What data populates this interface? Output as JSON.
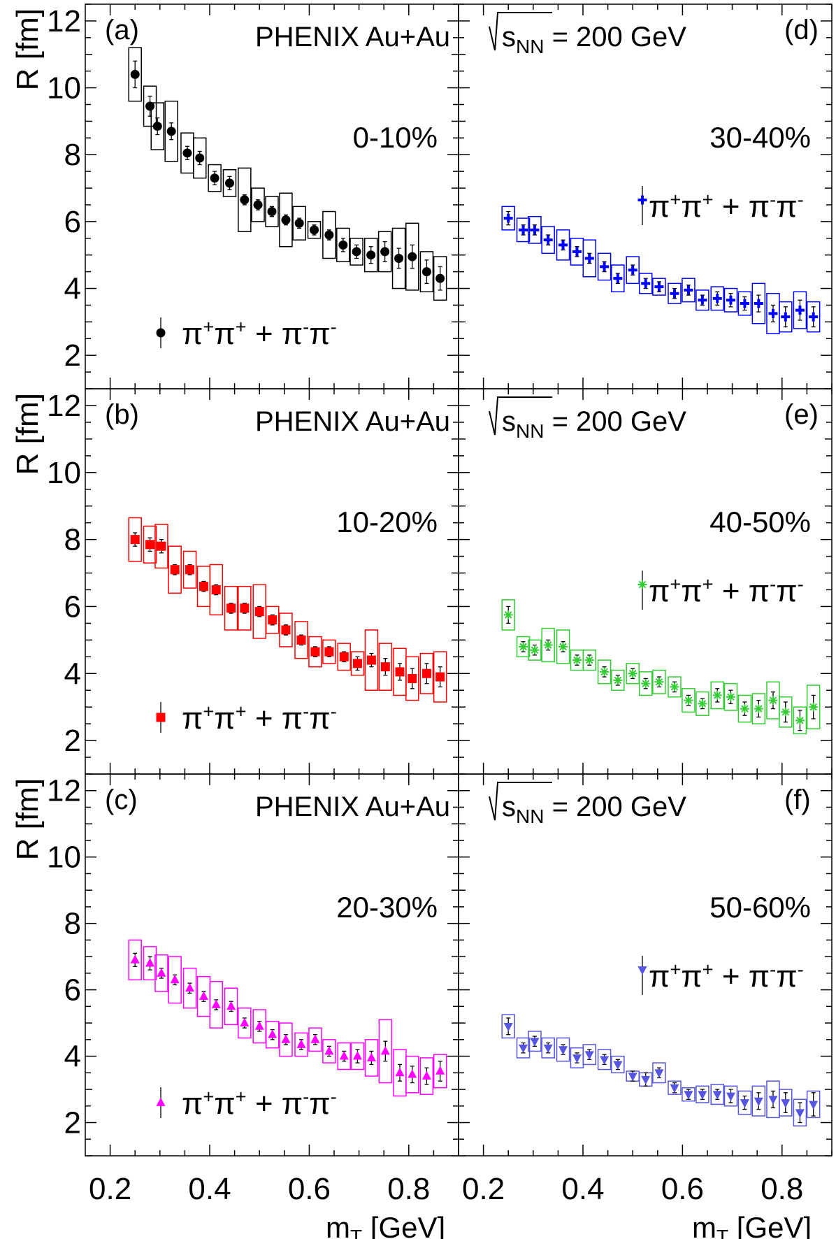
{
  "figure": {
    "x_axis_title": "m",
    "x_axis_subscript": "T",
    "x_axis_unit": " [GeV]",
    "y_axis_title": "R [fm]",
    "experiment_label": "PHENIX Au+Au",
    "energy_label_s": "s",
    "energy_label_sub": "NN",
    "energy_label_rest": " = 200 GeV",
    "legend_parts": {
      "pi": "π",
      "plus": "+",
      "minus": "-",
      "join": " + "
    }
  },
  "chart_data": [
    {
      "type": "scatter",
      "panel_id": "(a)",
      "centrality": "0-10%",
      "marker": "circle",
      "color": "#000000",
      "xlim": [
        0.15,
        0.9
      ],
      "ylim": [
        1,
        12.5
      ],
      "x_ticks": [
        0.2,
        0.4,
        0.6,
        0.8
      ],
      "y_ticks": [
        2,
        4,
        6,
        8,
        10,
        12
      ],
      "x_tick_labels_shown": false,
      "y_tick_labels_shown": true,
      "series": [
        {
          "name": "π+π+ + π-π-",
          "x": [
            0.25,
            0.28,
            0.295,
            0.323,
            0.355,
            0.38,
            0.41,
            0.44,
            0.47,
            0.497,
            0.525,
            0.553,
            0.58,
            0.61,
            0.64,
            0.668,
            0.695,
            0.724,
            0.752,
            0.78,
            0.807,
            0.836,
            0.863
          ],
          "y": [
            10.4,
            9.45,
            8.85,
            8.7,
            8.05,
            7.9,
            7.3,
            7.15,
            6.65,
            6.5,
            6.3,
            6.05,
            5.95,
            5.75,
            5.6,
            5.3,
            5.1,
            5.0,
            5.1,
            4.9,
            4.95,
            4.5,
            4.3
          ],
          "stat": [
            0.4,
            0.3,
            0.25,
            0.25,
            0.2,
            0.2,
            0.2,
            0.2,
            0.15,
            0.15,
            0.15,
            0.15,
            0.15,
            0.15,
            0.15,
            0.2,
            0.2,
            0.25,
            0.3,
            0.3,
            0.35,
            0.35,
            0.35
          ],
          "sys": [
            0.8,
            0.6,
            0.7,
            0.9,
            0.6,
            0.6,
            0.4,
            0.4,
            0.95,
            0.5,
            0.45,
            0.8,
            0.5,
            0.25,
            0.7,
            0.5,
            0.4,
            0.5,
            0.6,
            0.9,
            1.0,
            0.6,
            0.65
          ]
        }
      ]
    },
    {
      "type": "scatter",
      "panel_id": "(d)",
      "centrality": "30-40%",
      "marker": "cross",
      "color": "#0000ff",
      "xlim": [
        0.15,
        0.9
      ],
      "ylim": [
        1,
        12.5
      ],
      "x_ticks": [
        0.2,
        0.4,
        0.6,
        0.8
      ],
      "y_ticks": [
        2,
        4,
        6,
        8,
        10,
        12
      ],
      "x_tick_labels_shown": false,
      "y_tick_labels_shown": false,
      "series": [
        {
          "name": "π+π+ + π-π-",
          "x": [
            0.25,
            0.28,
            0.303,
            0.33,
            0.36,
            0.388,
            0.413,
            0.443,
            0.47,
            0.5,
            0.526,
            0.553,
            0.584,
            0.612,
            0.64,
            0.67,
            0.697,
            0.725,
            0.753,
            0.782,
            0.807,
            0.836,
            0.863
          ],
          "y": [
            6.1,
            5.75,
            5.75,
            5.45,
            5.3,
            5.1,
            4.9,
            4.65,
            4.3,
            4.55,
            4.15,
            4.05,
            3.85,
            3.95,
            3.65,
            3.7,
            3.65,
            3.55,
            3.55,
            3.25,
            3.15,
            3.35,
            3.15
          ],
          "stat": [
            0.2,
            0.15,
            0.15,
            0.15,
            0.15,
            0.15,
            0.15,
            0.15,
            0.15,
            0.15,
            0.15,
            0.15,
            0.15,
            0.15,
            0.15,
            0.2,
            0.2,
            0.2,
            0.25,
            0.25,
            0.3,
            0.3,
            0.3
          ],
          "sys": [
            0.35,
            0.35,
            0.4,
            0.4,
            0.45,
            0.4,
            0.55,
            0.4,
            0.4,
            0.4,
            0.3,
            0.25,
            0.3,
            0.35,
            0.3,
            0.35,
            0.35,
            0.35,
            0.6,
            0.6,
            0.45,
            0.55,
            0.45
          ]
        }
      ]
    },
    {
      "type": "scatter",
      "panel_id": "(b)",
      "centrality": "10-20%",
      "marker": "square",
      "color": "#ff0000",
      "xlim": [
        0.15,
        0.9
      ],
      "ylim": [
        1,
        12.5
      ],
      "x_ticks": [
        0.2,
        0.4,
        0.6,
        0.8
      ],
      "y_ticks": [
        2,
        4,
        6,
        8,
        10,
        12
      ],
      "x_tick_labels_shown": false,
      "y_tick_labels_shown": true,
      "series": [
        {
          "name": "π+π+ + π-π-",
          "x": [
            0.25,
            0.28,
            0.303,
            0.33,
            0.36,
            0.388,
            0.413,
            0.443,
            0.47,
            0.5,
            0.526,
            0.553,
            0.584,
            0.612,
            0.64,
            0.67,
            0.697,
            0.725,
            0.753,
            0.782,
            0.807,
            0.836,
            0.863
          ],
          "y": [
            8.0,
            7.85,
            7.8,
            7.1,
            7.1,
            6.6,
            6.5,
            5.95,
            5.95,
            5.85,
            5.6,
            5.3,
            5.0,
            4.65,
            4.65,
            4.5,
            4.3,
            4.4,
            4.2,
            4.05,
            3.85,
            4.0,
            3.9
          ],
          "stat": [
            0.2,
            0.2,
            0.2,
            0.15,
            0.15,
            0.15,
            0.15,
            0.15,
            0.15,
            0.15,
            0.15,
            0.15,
            0.15,
            0.15,
            0.15,
            0.15,
            0.2,
            0.2,
            0.25,
            0.25,
            0.3,
            0.3,
            0.3
          ],
          "sys": [
            0.65,
            0.55,
            0.65,
            0.7,
            0.55,
            0.6,
            0.75,
            0.65,
            0.65,
            0.8,
            0.4,
            0.5,
            0.55,
            0.45,
            0.35,
            0.4,
            0.35,
            0.9,
            0.7,
            0.7,
            0.65,
            0.6,
            0.75
          ]
        }
      ]
    },
    {
      "type": "scatter",
      "panel_id": "(e)",
      "centrality": "40-50%",
      "marker": "star",
      "color": "#33cc33",
      "xlim": [
        0.15,
        0.9
      ],
      "ylim": [
        1,
        12.5
      ],
      "x_ticks": [
        0.2,
        0.4,
        0.6,
        0.8
      ],
      "y_ticks": [
        2,
        4,
        6,
        8,
        10,
        12
      ],
      "x_tick_labels_shown": false,
      "y_tick_labels_shown": false,
      "series": [
        {
          "name": "π+π+ + π-π-",
          "x": [
            0.25,
            0.28,
            0.303,
            0.33,
            0.36,
            0.388,
            0.413,
            0.443,
            0.47,
            0.5,
            0.526,
            0.553,
            0.584,
            0.612,
            0.64,
            0.67,
            0.697,
            0.725,
            0.753,
            0.782,
            0.807,
            0.836,
            0.863
          ],
          "y": [
            5.75,
            4.8,
            4.7,
            4.85,
            4.8,
            4.4,
            4.4,
            4.05,
            3.8,
            4.0,
            3.7,
            3.75,
            3.6,
            3.2,
            3.1,
            3.35,
            3.3,
            2.95,
            2.95,
            3.2,
            2.85,
            2.6,
            3.0
          ],
          "stat": [
            0.25,
            0.15,
            0.15,
            0.15,
            0.15,
            0.15,
            0.15,
            0.15,
            0.15,
            0.15,
            0.15,
            0.15,
            0.15,
            0.15,
            0.15,
            0.2,
            0.2,
            0.2,
            0.25,
            0.25,
            0.3,
            0.3,
            0.35
          ],
          "sys": [
            0.45,
            0.3,
            0.3,
            0.5,
            0.5,
            0.3,
            0.3,
            0.35,
            0.3,
            0.3,
            0.35,
            0.35,
            0.3,
            0.35,
            0.35,
            0.4,
            0.4,
            0.4,
            0.45,
            0.55,
            0.45,
            0.4,
            0.65
          ]
        }
      ]
    },
    {
      "type": "scatter",
      "panel_id": "(c)",
      "centrality": "20-30%",
      "marker": "triangle-up",
      "color": "#ff00ff",
      "xlim": [
        0.15,
        0.9
      ],
      "ylim": [
        1,
        12.5
      ],
      "x_ticks": [
        0.2,
        0.4,
        0.6,
        0.8
      ],
      "y_ticks": [
        2,
        4,
        6,
        8,
        10,
        12
      ],
      "x_tick_labels_shown": true,
      "y_tick_labels_shown": true,
      "series": [
        {
          "name": "π+π+ + π-π-",
          "x": [
            0.25,
            0.28,
            0.303,
            0.33,
            0.36,
            0.388,
            0.413,
            0.443,
            0.47,
            0.5,
            0.526,
            0.553,
            0.584,
            0.612,
            0.64,
            0.67,
            0.697,
            0.725,
            0.753,
            0.782,
            0.807,
            0.836,
            0.863
          ],
          "y": [
            6.9,
            6.8,
            6.5,
            6.3,
            6.05,
            5.8,
            5.55,
            5.5,
            5.0,
            4.9,
            4.65,
            4.5,
            4.35,
            4.5,
            4.15,
            4.0,
            4.0,
            3.95,
            4.15,
            3.5,
            3.45,
            3.4,
            3.55
          ],
          "stat": [
            0.2,
            0.2,
            0.15,
            0.15,
            0.15,
            0.15,
            0.15,
            0.15,
            0.15,
            0.15,
            0.15,
            0.15,
            0.15,
            0.15,
            0.15,
            0.15,
            0.2,
            0.2,
            0.3,
            0.25,
            0.25,
            0.25,
            0.3
          ],
          "sys": [
            0.6,
            0.5,
            0.55,
            0.7,
            0.6,
            0.6,
            0.7,
            0.55,
            0.45,
            0.5,
            0.4,
            0.5,
            0.35,
            0.35,
            0.35,
            0.4,
            0.4,
            0.55,
            0.95,
            0.7,
            0.55,
            0.55,
            0.5
          ]
        }
      ]
    },
    {
      "type": "scatter",
      "panel_id": "(f)",
      "centrality": "50-60%",
      "marker": "triangle-down",
      "color": "#5555dd",
      "xlim": [
        0.15,
        0.9
      ],
      "ylim": [
        1,
        12.5
      ],
      "x_ticks": [
        0.2,
        0.4,
        0.6,
        0.8
      ],
      "y_ticks": [
        2,
        4,
        6,
        8,
        10,
        12
      ],
      "x_tick_labels_shown": true,
      "y_tick_labels_shown": false,
      "series": [
        {
          "name": "π+π+ + π-π-",
          "x": [
            0.25,
            0.28,
            0.303,
            0.33,
            0.36,
            0.388,
            0.413,
            0.443,
            0.47,
            0.5,
            0.526,
            0.553,
            0.584,
            0.612,
            0.64,
            0.67,
            0.697,
            0.725,
            0.753,
            0.782,
            0.807,
            0.836,
            0.863
          ],
          "y": [
            4.9,
            4.25,
            4.45,
            4.25,
            4.2,
            3.95,
            4.05,
            3.9,
            3.75,
            3.4,
            3.3,
            3.5,
            3.05,
            2.85,
            2.85,
            2.85,
            2.8,
            2.6,
            2.65,
            2.7,
            2.6,
            2.3,
            2.55
          ],
          "stat": [
            0.25,
            0.15,
            0.15,
            0.15,
            0.15,
            0.15,
            0.15,
            0.15,
            0.15,
            0.15,
            0.2,
            0.15,
            0.15,
            0.15,
            0.15,
            0.15,
            0.2,
            0.2,
            0.25,
            0.25,
            0.3,
            0.3,
            0.35
          ],
          "sys": [
            0.35,
            0.3,
            0.3,
            0.3,
            0.35,
            0.3,
            0.3,
            0.3,
            0.25,
            0.15,
            0.2,
            0.3,
            0.2,
            0.2,
            0.25,
            0.3,
            0.3,
            0.35,
            0.45,
            0.55,
            0.4,
            0.4,
            0.4
          ]
        }
      ]
    }
  ]
}
